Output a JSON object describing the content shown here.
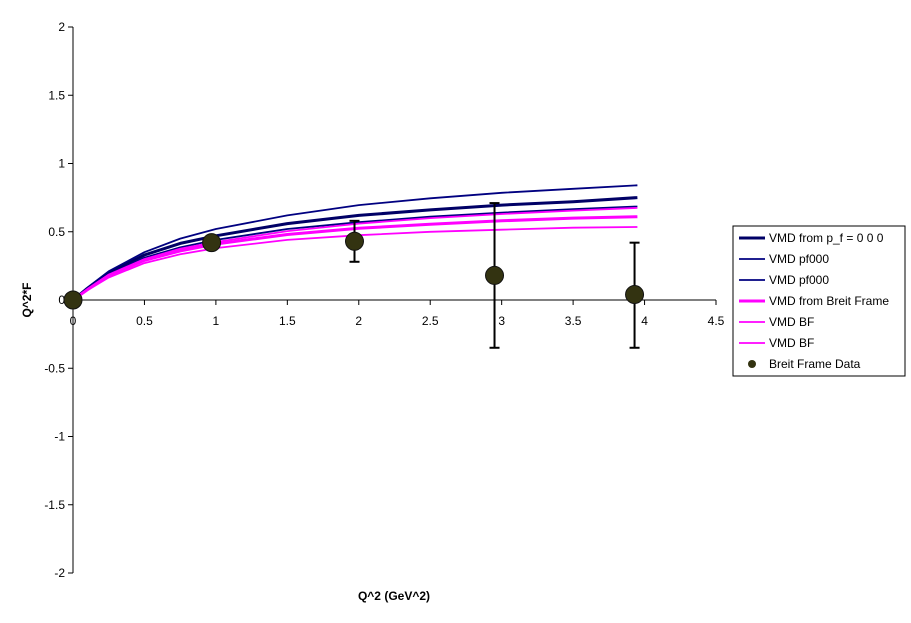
{
  "chart_data": {
    "type": "line",
    "title": "",
    "xlabel": "Q^2 (GeV^2)",
    "ylabel": "Q^2*F",
    "xlim": [
      0,
      4.5
    ],
    "ylim": [
      -2,
      2
    ],
    "xticks": [
      0,
      0.5,
      1,
      1.5,
      2,
      2.5,
      3,
      3.5,
      4,
      4.5
    ],
    "xtick_labels": [
      "0",
      "0.5",
      "1",
      "1.5",
      "2",
      "2.5",
      "3",
      "3.5",
      "4",
      "4.5"
    ],
    "yticks": [
      -2,
      -1.5,
      -1,
      -0.5,
      0,
      0.5,
      1,
      1.5,
      2
    ],
    "ytick_labels": [
      "-2",
      "-1.5",
      "-1",
      "-0.5",
      "0",
      "0.5",
      "1",
      "1.5",
      "2"
    ],
    "grid": false,
    "legend_position": "right",
    "series": [
      {
        "name": "VMD from p_f = 0 0 0",
        "kind": "line",
        "color": "#000066",
        "emphasis": "thick",
        "x": [
          0,
          0.1,
          0.25,
          0.5,
          0.75,
          1,
          1.5,
          2,
          2.5,
          3,
          3.5,
          3.95
        ],
        "y": [
          0,
          0.085,
          0.2,
          0.33,
          0.415,
          0.47,
          0.56,
          0.62,
          0.66,
          0.695,
          0.72,
          0.75
        ]
      },
      {
        "name": "VMD pf000",
        "kind": "line",
        "color": "#000080",
        "emphasis": "thin",
        "x": [
          0,
          0.1,
          0.25,
          0.5,
          0.75,
          1,
          1.5,
          2,
          2.5,
          3,
          3.5,
          3.95
        ],
        "y": [
          0,
          0.09,
          0.21,
          0.35,
          0.45,
          0.52,
          0.62,
          0.695,
          0.745,
          0.785,
          0.815,
          0.84
        ]
      },
      {
        "name": "VMD pf000",
        "kind": "line",
        "color": "#000080",
        "emphasis": "thin",
        "x": [
          0,
          0.1,
          0.25,
          0.5,
          0.75,
          1,
          1.5,
          2,
          2.5,
          3,
          3.5,
          3.95
        ],
        "y": [
          0,
          0.08,
          0.19,
          0.31,
          0.385,
          0.44,
          0.52,
          0.57,
          0.61,
          0.64,
          0.665,
          0.685
        ]
      },
      {
        "name": "VMD from Breit Frame",
        "kind": "line",
        "color": "#ff00ff",
        "emphasis": "thick",
        "x": [
          0,
          0.1,
          0.25,
          0.5,
          0.75,
          1,
          1.5,
          2,
          2.5,
          3,
          3.5,
          3.95
        ],
        "y": [
          0,
          0.075,
          0.18,
          0.29,
          0.36,
          0.41,
          0.48,
          0.525,
          0.555,
          0.58,
          0.6,
          0.61
        ]
      },
      {
        "name": "VMD BF",
        "kind": "line",
        "color": "#ff00ff",
        "emphasis": "thin",
        "x": [
          0,
          0.1,
          0.25,
          0.5,
          0.75,
          1,
          1.5,
          2,
          2.5,
          3,
          3.5,
          3.95
        ],
        "y": [
          0,
          0.078,
          0.185,
          0.3,
          0.375,
          0.425,
          0.505,
          0.56,
          0.6,
          0.63,
          0.655,
          0.675
        ]
      },
      {
        "name": "VMD BF",
        "kind": "line",
        "color": "#ff00ff",
        "emphasis": "thin",
        "x": [
          0,
          0.1,
          0.25,
          0.5,
          0.75,
          1,
          1.5,
          2,
          2.5,
          3,
          3.5,
          3.95
        ],
        "y": [
          0,
          0.07,
          0.165,
          0.27,
          0.335,
          0.38,
          0.44,
          0.475,
          0.5,
          0.515,
          0.53,
          0.535
        ]
      },
      {
        "name": "Breit Frame Data",
        "kind": "scatter",
        "color": "#333311",
        "x": [
          0,
          0.97,
          1.97,
          2.95,
          3.93
        ],
        "y": [
          0,
          0.42,
          0.43,
          0.18,
          0.04
        ],
        "error_low": [
          0,
          0,
          0.15,
          0.53,
          0.39
        ],
        "error_high": [
          0,
          0,
          0.15,
          0.53,
          0.38
        ]
      }
    ]
  }
}
